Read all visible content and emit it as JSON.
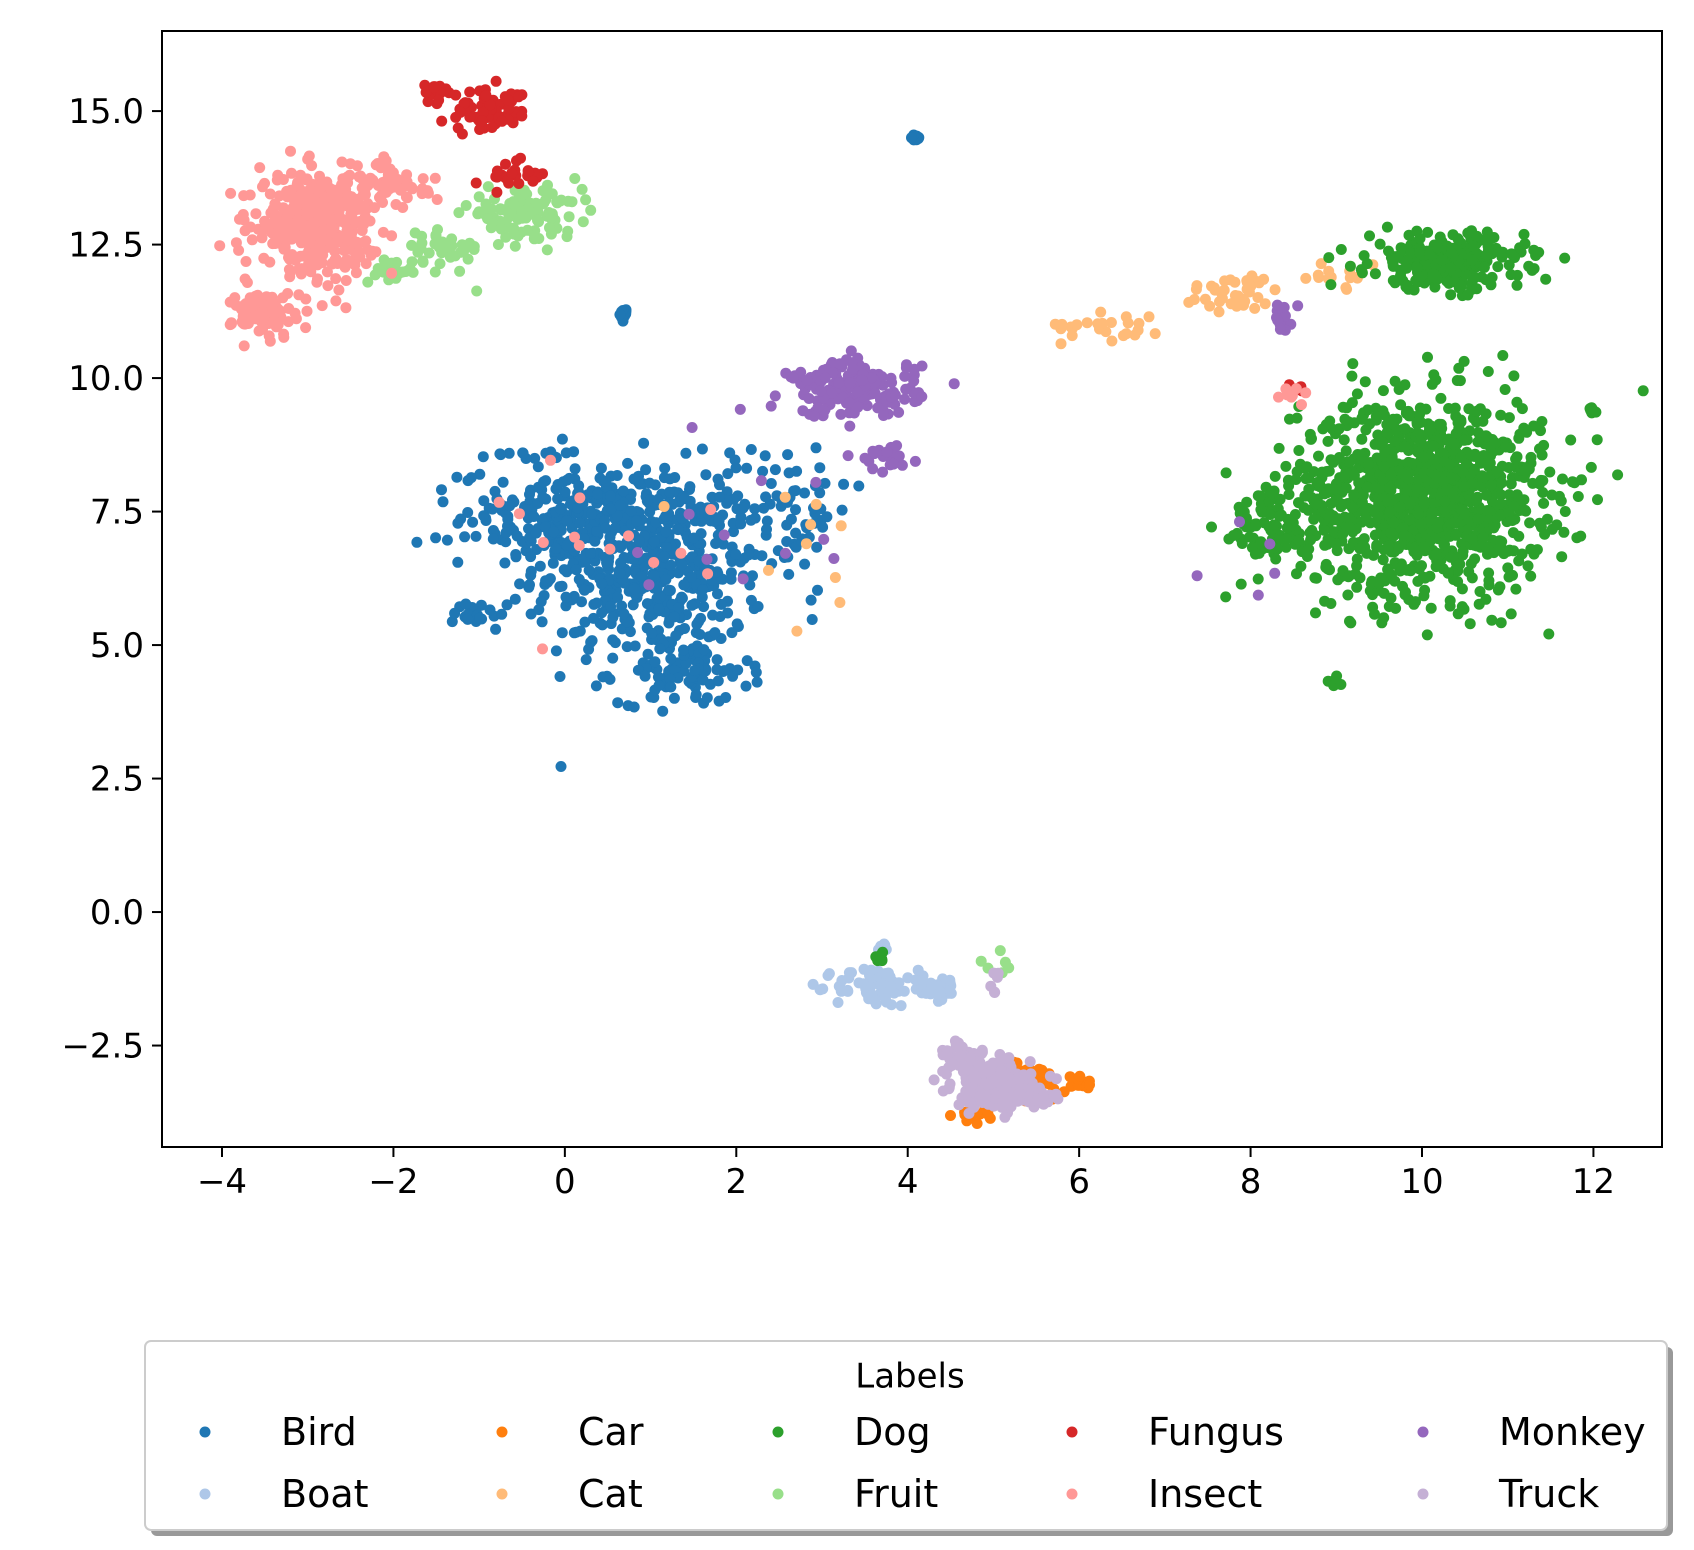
{
  "chart_data": {
    "type": "scatter",
    "title": "",
    "xlabel": "",
    "ylabel": "",
    "xlim": [
      -4.7,
      12.8
    ],
    "ylim": [
      -4.4,
      16.5
    ],
    "xticks": [
      {
        "value": -4,
        "label": "−4"
      },
      {
        "value": -2,
        "label": "−2"
      },
      {
        "value": 0,
        "label": "0"
      },
      {
        "value": 2,
        "label": "2"
      },
      {
        "value": 4,
        "label": "4"
      },
      {
        "value": 6,
        "label": "6"
      },
      {
        "value": 8,
        "label": "8"
      },
      {
        "value": 10,
        "label": "10"
      },
      {
        "value": 12,
        "label": "12"
      }
    ],
    "yticks": [
      {
        "value": -2.5,
        "label": "−2.5"
      },
      {
        "value": 0,
        "label": "0.0"
      },
      {
        "value": 2.5,
        "label": "2.5"
      },
      {
        "value": 5,
        "label": "5.0"
      },
      {
        "value": 7.5,
        "label": "7.5"
      },
      {
        "value": 10,
        "label": "10.0"
      },
      {
        "value": 12.5,
        "label": "12.5"
      },
      {
        "value": 15,
        "label": "15.0"
      }
    ],
    "grid": false,
    "legend": {
      "title": "Labels",
      "placement": "below the plot",
      "columns": 5
    },
    "series": [
      {
        "name": "Bird",
        "color": "#1f77b4",
        "clusters": [
          {
            "cx": 1.0,
            "cy": 6.5,
            "sx": 0.9,
            "sy": 1.2,
            "n": 520
          },
          {
            "cx": 0.0,
            "cy": 7.4,
            "sx": 0.8,
            "sy": 0.6,
            "n": 200
          },
          {
            "cx": 1.4,
            "cy": 4.5,
            "sx": 0.5,
            "sy": 0.4,
            "n": 90
          },
          {
            "cx": 2.6,
            "cy": 7.6,
            "sx": 0.5,
            "sy": 0.8,
            "n": 60
          },
          {
            "cx": -1.0,
            "cy": 5.6,
            "sx": 0.2,
            "sy": 0.2,
            "n": 20
          },
          {
            "cx": -0.4,
            "cy": 8.6,
            "sx": 0.3,
            "sy": 0.1,
            "n": 15
          },
          {
            "cx": 0.7,
            "cy": 11.2,
            "sx": 0.04,
            "sy": 0.08,
            "n": 10
          },
          {
            "cx": 4.1,
            "cy": 14.5,
            "sx": 0.05,
            "sy": 0.04,
            "n": 8
          }
        ]
      },
      {
        "name": "Boat",
        "color": "#aec7e8",
        "clusters": [
          {
            "cx": 3.6,
            "cy": -1.4,
            "sx": 0.3,
            "sy": 0.25,
            "n": 70
          },
          {
            "cx": 4.3,
            "cy": -1.4,
            "sx": 0.2,
            "sy": 0.2,
            "n": 30
          },
          {
            "cx": 3.7,
            "cy": -0.7,
            "sx": 0.1,
            "sy": 0.1,
            "n": 8
          }
        ]
      },
      {
        "name": "Car",
        "color": "#ff7f0e",
        "clusters": [
          {
            "cx": 5.4,
            "cy": -3.2,
            "sx": 0.35,
            "sy": 0.25,
            "n": 50
          },
          {
            "cx": 6.0,
            "cy": -3.2,
            "sx": 0.12,
            "sy": 0.1,
            "n": 15
          },
          {
            "cx": 4.9,
            "cy": -3.8,
            "sx": 0.2,
            "sy": 0.1,
            "n": 15
          }
        ]
      },
      {
        "name": "Cat",
        "color": "#ffbb78",
        "clusters": [
          {
            "cx": 7.8,
            "cy": 11.6,
            "sx": 0.4,
            "sy": 0.25,
            "n": 40
          },
          {
            "cx": 6.4,
            "cy": 11.0,
            "sx": 0.4,
            "sy": 0.2,
            "n": 25
          },
          {
            "cx": 9.0,
            "cy": 11.9,
            "sx": 0.4,
            "sy": 0.15,
            "n": 15
          },
          {
            "cx": 2.5,
            "cy": 7.0,
            "sx": 1.0,
            "sy": 1.0,
            "n": 10
          }
        ]
      },
      {
        "name": "Dog",
        "color": "#2ca02c",
        "clusters": [
          {
            "cx": 10.0,
            "cy": 7.8,
            "sx": 0.95,
            "sy": 1.2,
            "n": 1200
          },
          {
            "cx": 10.3,
            "cy": 12.2,
            "sx": 0.6,
            "sy": 0.35,
            "n": 260
          },
          {
            "cx": 8.2,
            "cy": 7.2,
            "sx": 0.4,
            "sy": 0.5,
            "n": 80
          },
          {
            "cx": 9.0,
            "cy": 4.3,
            "sx": 0.06,
            "sy": 0.1,
            "n": 8
          },
          {
            "cx": 12.0,
            "cy": 9.4,
            "sx": 0.05,
            "sy": 0.04,
            "n": 6
          },
          {
            "cx": 3.7,
            "cy": -0.85,
            "sx": 0.06,
            "sy": 0.05,
            "n": 8
          }
        ]
      },
      {
        "name": "Fruit",
        "color": "#98df8a",
        "clusters": [
          {
            "cx": -0.5,
            "cy": 13.1,
            "sx": 0.45,
            "sy": 0.3,
            "n": 110
          },
          {
            "cx": -1.4,
            "cy": 12.4,
            "sx": 0.3,
            "sy": 0.3,
            "n": 40
          },
          {
            "cx": -2.0,
            "cy": 12.0,
            "sx": 0.2,
            "sy": 0.15,
            "n": 20
          },
          {
            "cx": 5.0,
            "cy": -1.0,
            "sx": 0.15,
            "sy": 0.15,
            "n": 6
          }
        ]
      },
      {
        "name": "Fungus",
        "color": "#d62728",
        "clusters": [
          {
            "cx": -0.9,
            "cy": 15.0,
            "sx": 0.35,
            "sy": 0.25,
            "n": 70
          },
          {
            "cx": -0.6,
            "cy": 13.8,
            "sx": 0.25,
            "sy": 0.2,
            "n": 25
          },
          {
            "cx": -1.5,
            "cy": 15.4,
            "sx": 0.1,
            "sy": 0.1,
            "n": 12
          },
          {
            "cx": 8.5,
            "cy": 9.8,
            "sx": 0.1,
            "sy": 0.08,
            "n": 6
          }
        ]
      },
      {
        "name": "Insect",
        "color": "#ff9896",
        "clusters": [
          {
            "cx": -2.9,
            "cy": 12.9,
            "sx": 0.45,
            "sy": 0.6,
            "n": 420
          },
          {
            "cx": -3.5,
            "cy": 11.2,
            "sx": 0.25,
            "sy": 0.3,
            "n": 80
          },
          {
            "cx": -2.1,
            "cy": 13.6,
            "sx": 0.4,
            "sy": 0.3,
            "n": 60
          },
          {
            "cx": 0.8,
            "cy": 7.0,
            "sx": 1.0,
            "sy": 1.0,
            "n": 14
          },
          {
            "cx": 8.5,
            "cy": 9.7,
            "sx": 0.1,
            "sy": 0.15,
            "n": 8
          }
        ]
      },
      {
        "name": "Monkey",
        "color": "#9467bd",
        "clusters": [
          {
            "cx": 3.4,
            "cy": 9.8,
            "sx": 0.5,
            "sy": 0.35,
            "n": 180
          },
          {
            "cx": 3.7,
            "cy": 8.5,
            "sx": 0.25,
            "sy": 0.15,
            "n": 20
          },
          {
            "cx": 8.4,
            "cy": 11.1,
            "sx": 0.1,
            "sy": 0.25,
            "n": 15
          },
          {
            "cx": 2.0,
            "cy": 6.8,
            "sx": 1.1,
            "sy": 1.1,
            "n": 12
          },
          {
            "cx": 7.8,
            "cy": 6.5,
            "sx": 0.4,
            "sy": 0.5,
            "n": 5
          }
        ]
      },
      {
        "name": "Truck",
        "color": "#c5b0d5",
        "clusters": [
          {
            "cx": 5.0,
            "cy": -3.2,
            "sx": 0.3,
            "sy": 0.3,
            "n": 220
          },
          {
            "cx": 4.6,
            "cy": -2.7,
            "sx": 0.15,
            "sy": 0.2,
            "n": 30
          },
          {
            "cx": 5.5,
            "cy": -3.5,
            "sx": 0.2,
            "sy": 0.15,
            "n": 30
          },
          {
            "cx": 5.0,
            "cy": -1.3,
            "sx": 0.05,
            "sy": 0.15,
            "n": 6
          }
        ]
      }
    ]
  }
}
